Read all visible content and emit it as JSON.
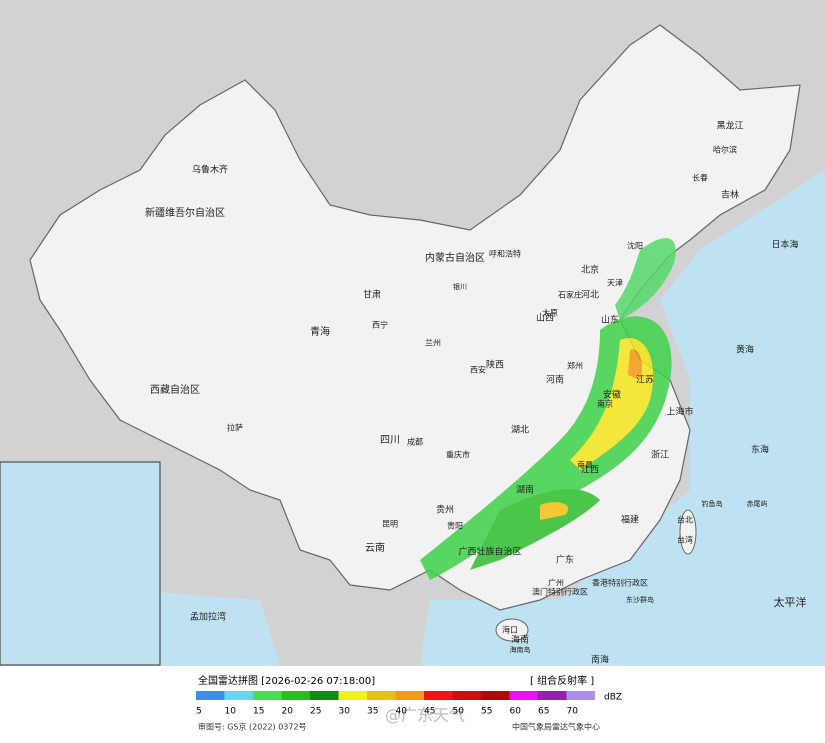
{
  "header": {
    "title": "全国雷达拼图 [2026-02-26 07:18:00]",
    "product": "[ 组合反射率 ]",
    "unit": "dBZ",
    "approval": "审图号: GS京 (2022) 0372号",
    "source": "中国气象局雷达气象中心",
    "watermark": "@广东天气"
  },
  "legend": [
    {
      "value": 5,
      "color": "#3d8fe6"
    },
    {
      "value": 10,
      "color": "#63d8f2"
    },
    {
      "value": 15,
      "color": "#48e050"
    },
    {
      "value": 20,
      "color": "#22c21a"
    },
    {
      "value": 25,
      "color": "#0f8c0f"
    },
    {
      "value": 30,
      "color": "#f2f21a"
    },
    {
      "value": 35,
      "color": "#e6c212"
    },
    {
      "value": 40,
      "color": "#f29a12"
    },
    {
      "value": 45,
      "color": "#f21414"
    },
    {
      "value": 50,
      "color": "#cc1010"
    },
    {
      "value": 55,
      "color": "#b00a0a"
    },
    {
      "value": 60,
      "color": "#f20ef2"
    },
    {
      "value": 65,
      "color": "#9a1fb0"
    },
    {
      "value": 70,
      "color": "#ac8ee6"
    }
  ],
  "map_labels": [
    "乌鲁木齐",
    "新疆维吾尔自治区",
    "西藏自治区",
    "拉萨",
    "青海",
    "西宁",
    "甘肃",
    "内蒙古自治区",
    "呼和浩特",
    "黑龙江",
    "哈尔滨",
    "吉林",
    "长春",
    "沈阳",
    "北京",
    "天津",
    "河北",
    "石家庄",
    "山西",
    "太原",
    "陕西",
    "西安",
    "银川",
    "兰州",
    "四川",
    "成都",
    "重庆市",
    "贵州",
    "贵阳",
    "云南",
    "昆明",
    "广西壮族自治区",
    "广东",
    "广州",
    "海南",
    "海口",
    "湖北",
    "湖南",
    "河南",
    "郑州",
    "山东",
    "江苏",
    "南京",
    "安徽",
    "上海市",
    "浙江",
    "江西",
    "南昌",
    "福建",
    "台湾",
    "台北",
    "香港特别行政区",
    "澳门特别行政区",
    "日本海",
    "太平洋",
    "东海",
    "黄海",
    "南海",
    "孟加拉湾",
    "钓鱼岛",
    "赤尾屿",
    "东沙群岛",
    "海南岛"
  ]
}
